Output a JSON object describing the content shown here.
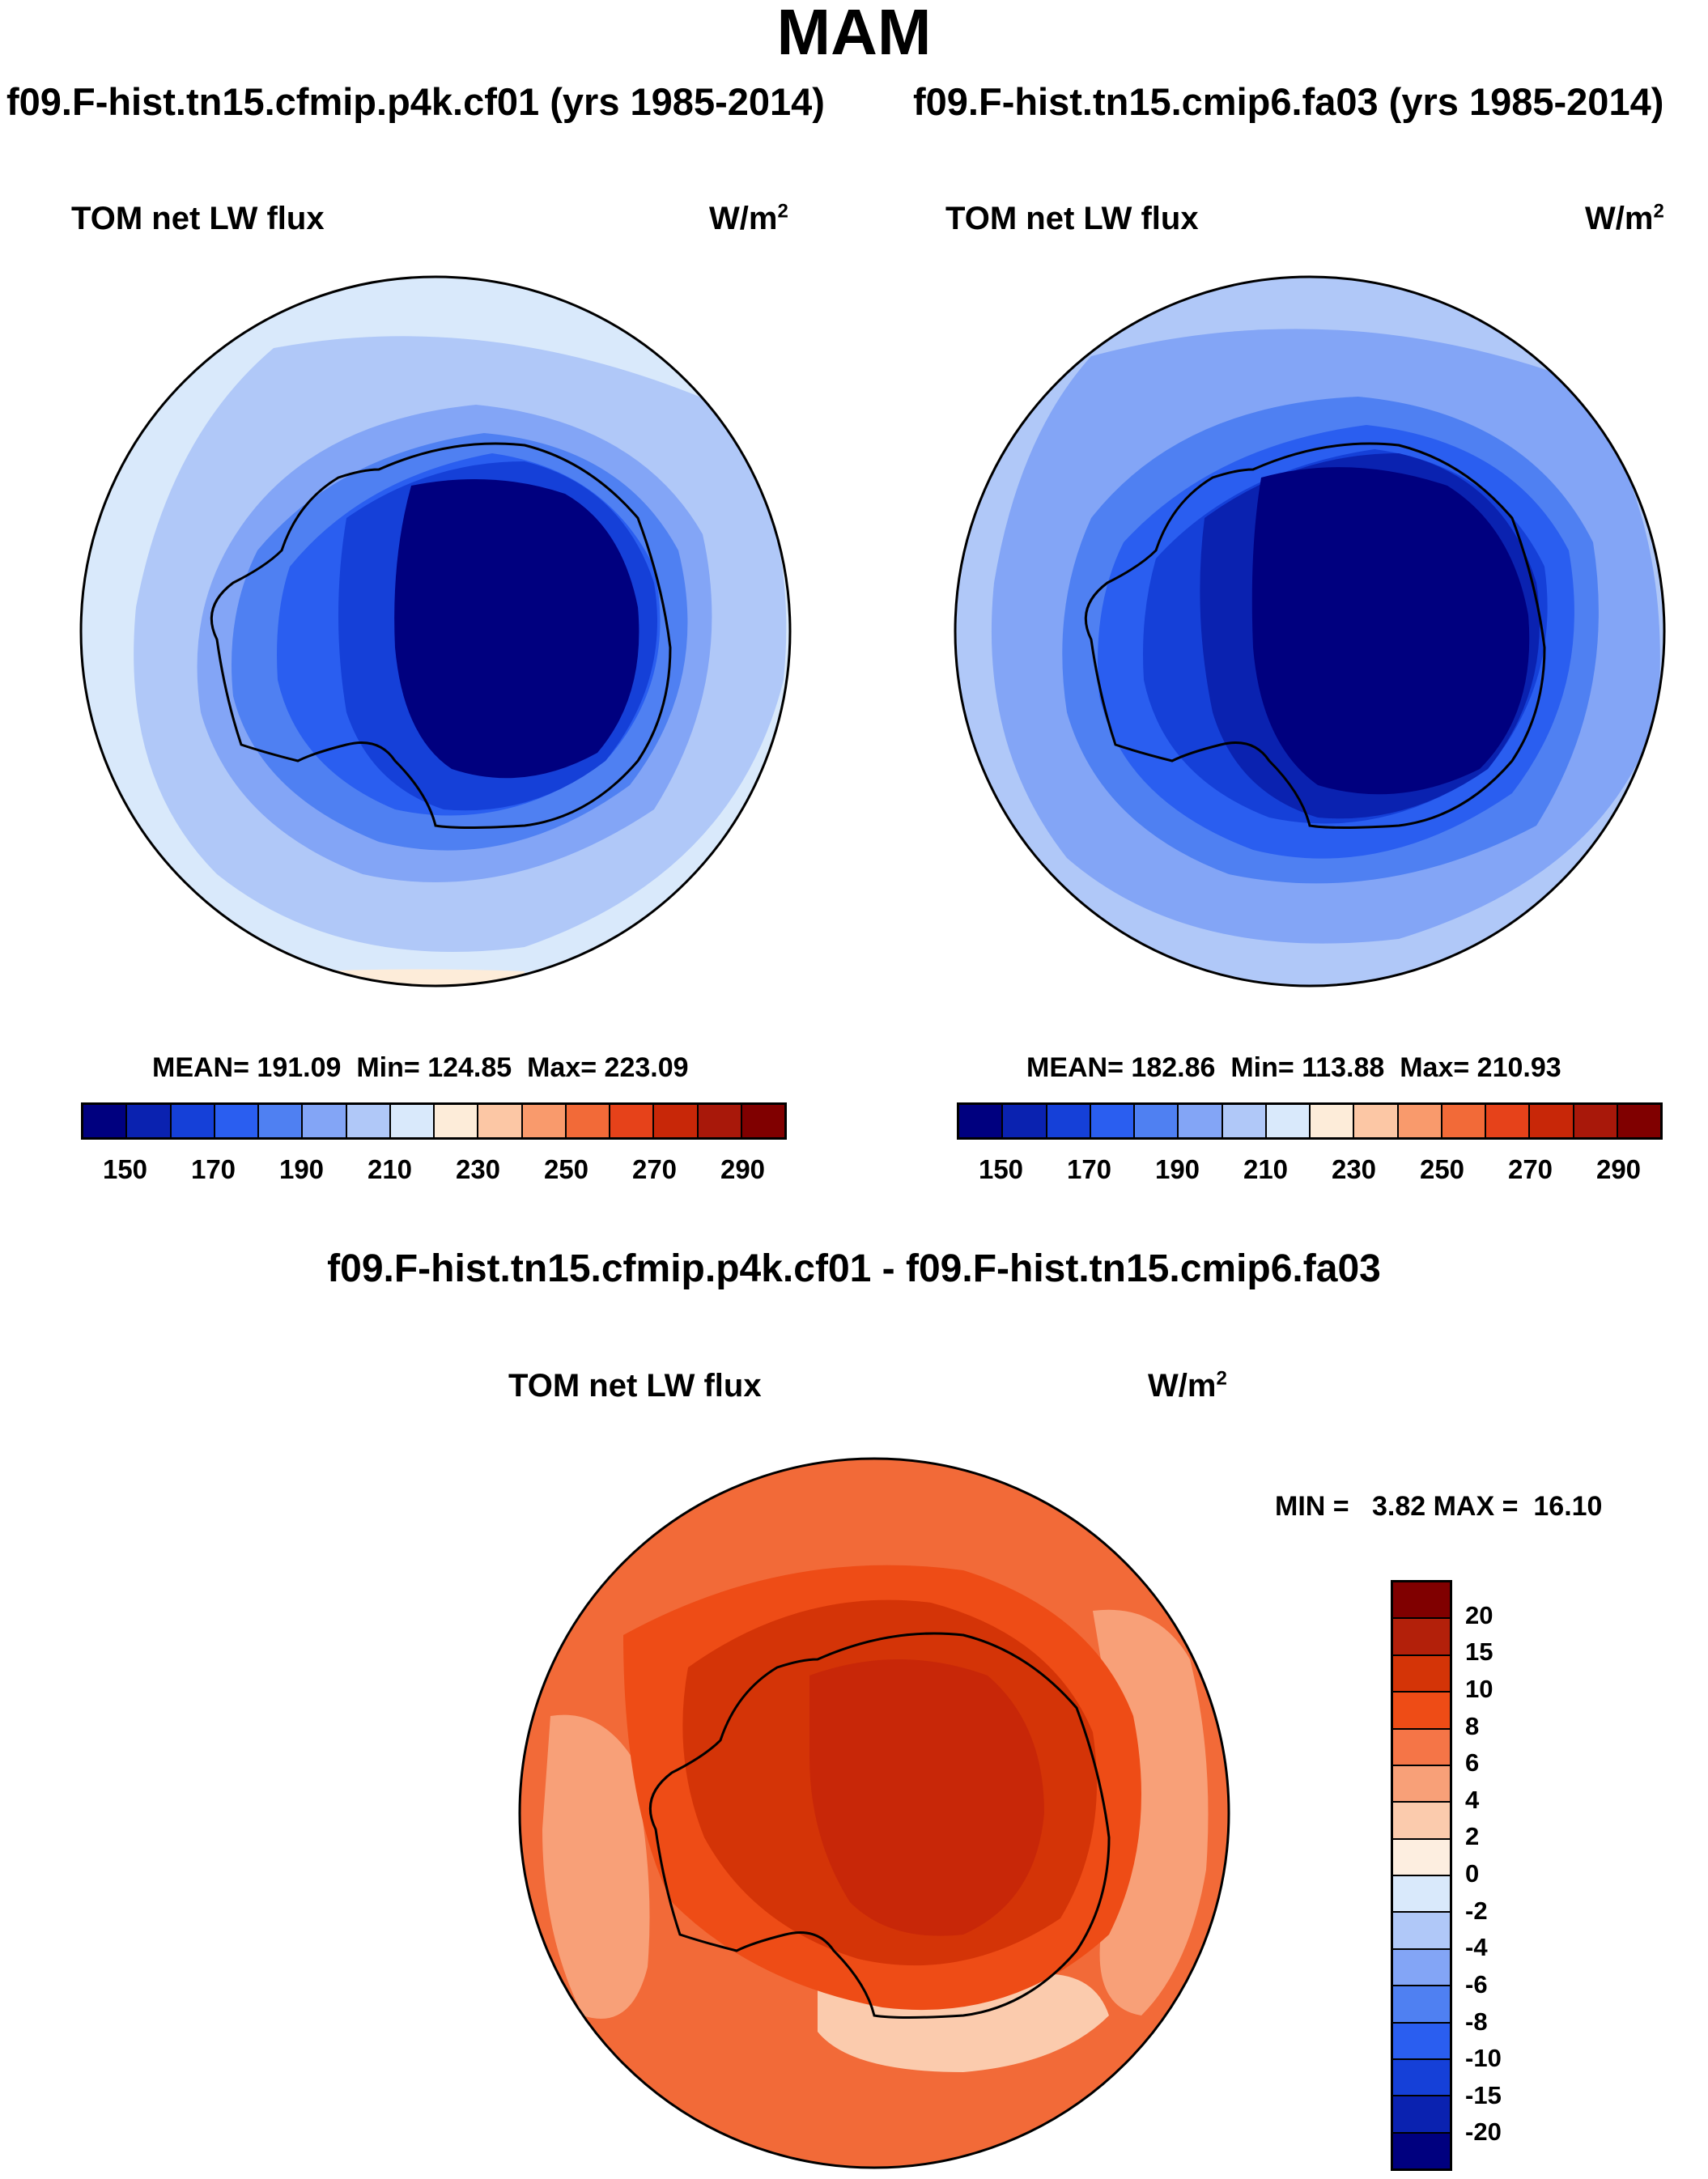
{
  "title": "MAM",
  "case_left": "f09.F-hist.tn15.cfmip.p4k.cf01 (yrs 1985-2014)",
  "case_right": "f09.F-hist.tn15.cmip6.fa03 (yrs 1985-2014)",
  "diff_title": "f09.F-hist.tn15.cfmip.p4k.cf01 - f09.F-hist.tn15.cmip6.fa03",
  "panels": {
    "left": {
      "variable": "TOM net LW flux",
      "units_base": "W/m",
      "units_exp": "2",
      "mean_label": "MEAN=",
      "mean": "191.09",
      "min_label": "Min=",
      "min": "124.85",
      "max_label": "Max=",
      "max": "223.09"
    },
    "right": {
      "variable": "TOM net LW flux",
      "units_base": "W/m",
      "units_exp": "2",
      "mean_label": "MEAN=",
      "mean": "182.86",
      "min_label": "Min=",
      "min": "113.88",
      "max_label": "Max=",
      "max": "210.93"
    },
    "diff": {
      "variable": "TOM net LW flux",
      "units_base": "W/m",
      "units_exp": "2",
      "min_label": "MIN =",
      "min": "3.82",
      "max_label": "MAX =",
      "max": "16.10"
    }
  },
  "abs_colorbar": {
    "colors": [
      "#00007f",
      "#0a22b0",
      "#1540d8",
      "#2a5ef0",
      "#4f80f2",
      "#83a5f6",
      "#b0c8f8",
      "#d9e9fb",
      "#fdecd9",
      "#fcc7a5",
      "#f99a6c",
      "#f26a38",
      "#e6421a",
      "#c82708",
      "#a8180a",
      "#800000"
    ],
    "ticks": [
      "150",
      "170",
      "190",
      "210",
      "230",
      "250",
      "270",
      "290"
    ]
  },
  "diff_colorbar": {
    "colors": [
      "#800000",
      "#b3200a",
      "#d43407",
      "#ee4c16",
      "#f57547",
      "#f8a078",
      "#fbcbad",
      "#fdeee0",
      "#d9e9fb",
      "#b0c8f8",
      "#83a5f6",
      "#4f80f2",
      "#2a5ef0",
      "#1540d8",
      "#0a22b0",
      "#00007f"
    ],
    "ticks": [
      "20",
      "15",
      "10",
      "8",
      "6",
      "4",
      "2",
      "0",
      "-2",
      "-4",
      "-6",
      "-8",
      "-10",
      "-15",
      "-20"
    ]
  },
  "map_colors": {
    "left": {
      "outer": "#d9e9fb",
      "ring1": "#b0c8f8",
      "ring2": "#83a5f6",
      "ring3": "#4f80f2",
      "ring4": "#2a5ef0",
      "ring5": "#1540d8",
      "core": "#00007f",
      "warm": "#fdecd9"
    },
    "right": {
      "outer": "#b0c8f8",
      "ring1": "#83a5f6",
      "ring2": "#4f80f2",
      "ring3": "#2a5ef0",
      "ring4": "#1540d8",
      "ring5": "#0a22b0",
      "core": "#00007f"
    },
    "diff": {
      "base": "#f26a38",
      "light": "#f8a078",
      "mid": "#ee4c16",
      "dark": "#d43407",
      "core": "#c82708",
      "pale": "#fbcbad"
    }
  }
}
